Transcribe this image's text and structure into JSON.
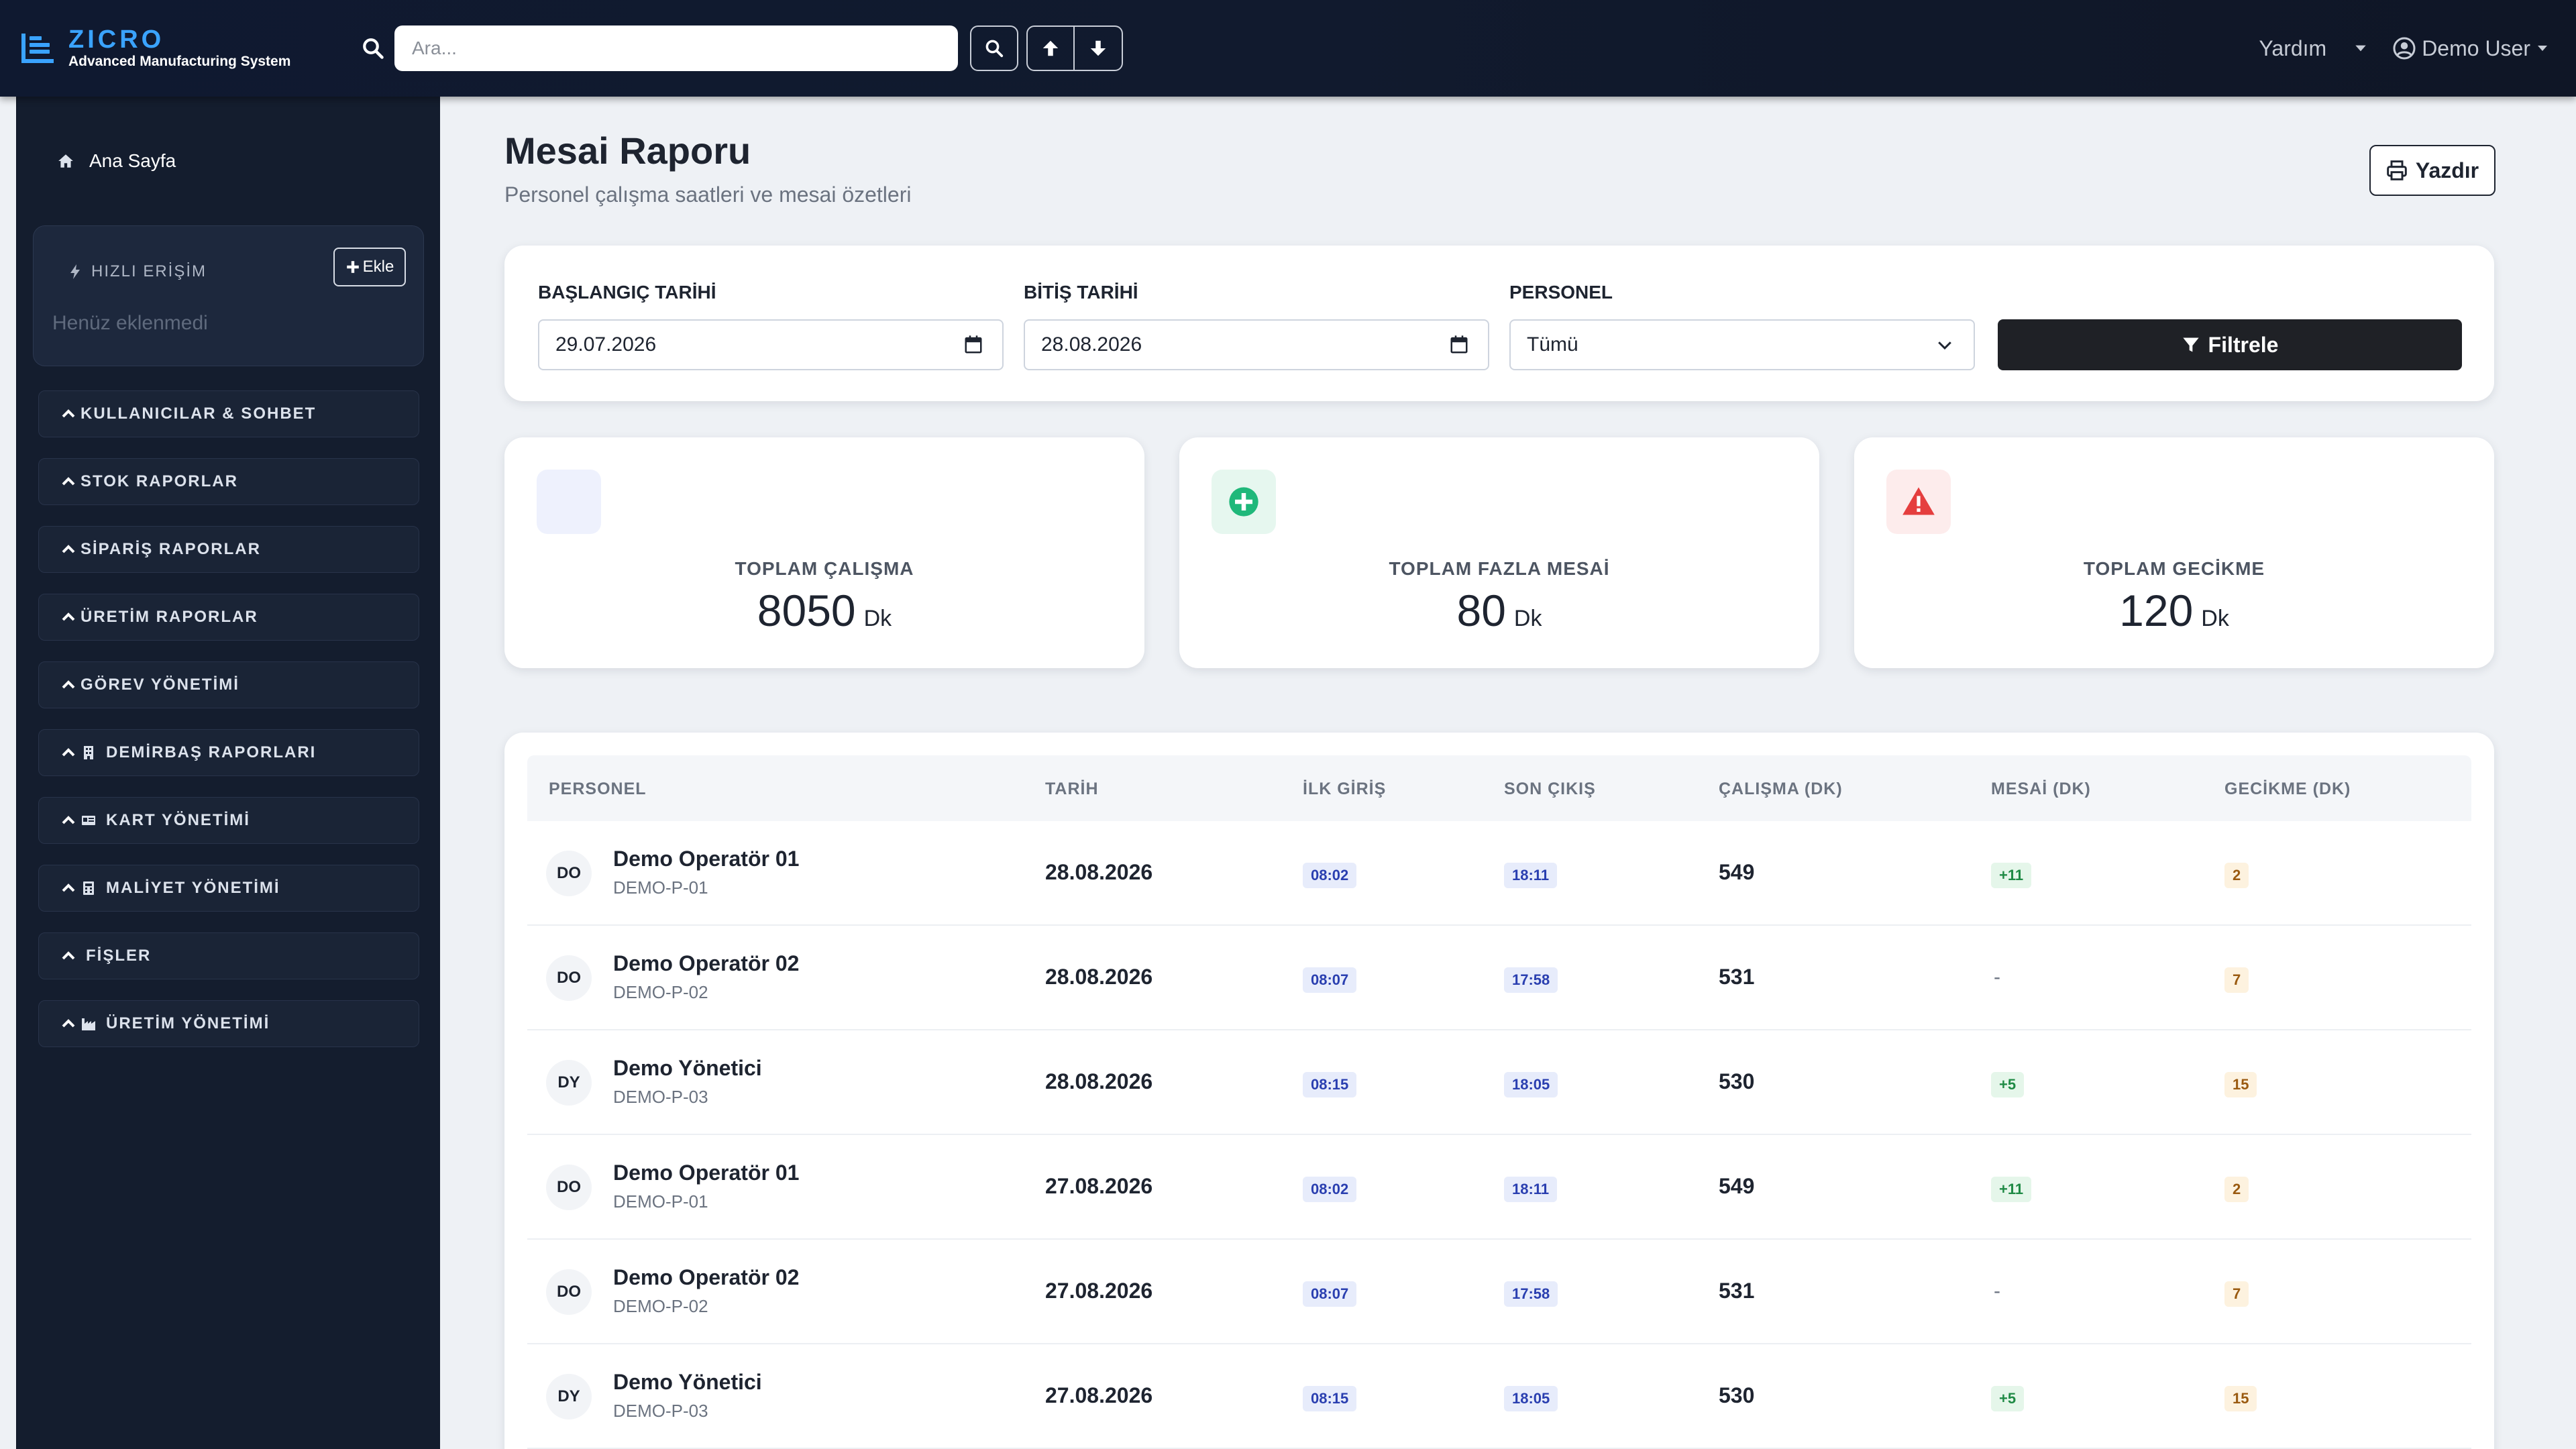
{
  "brand": {
    "name": "ZICRO",
    "subtitle": "Advanced Manufacturing System"
  },
  "search": {
    "placeholder": "Ara..."
  },
  "topbar": {
    "help_label": "Yardım",
    "user_label": "Demo User"
  },
  "sidebar": {
    "home_label": "Ana Sayfa",
    "quick_access": {
      "title": "HIZLI ERİŞİM",
      "add_label": "Ekle",
      "empty_text": "Henüz eklenmedi"
    },
    "groups": [
      {
        "label": "KULLANICILAR & SOHBET",
        "icon": "chevron-up-icon"
      },
      {
        "label": "STOK RAPORLAR",
        "icon": "chevron-up-icon"
      },
      {
        "label": "SİPARİŞ RAPORLAR",
        "icon": "chevron-up-icon"
      },
      {
        "label": "ÜRETİM RAPORLAR",
        "icon": "chevron-up-icon"
      },
      {
        "label": "GÖREV YÖNETİMİ",
        "icon": "chevron-up-icon"
      },
      {
        "label": "DEMİRBAŞ RAPORLARI",
        "icon": "building-icon"
      },
      {
        "label": "KART YÖNETİMİ",
        "icon": "id-card-icon"
      },
      {
        "label": "MALİYET YÖNETİMİ",
        "icon": "calculator-icon"
      },
      {
        "label": "FİŞLER",
        "icon": "chevron-up-icon"
      },
      {
        "label": "ÜRETİM YÖNETİMİ",
        "icon": "factory-icon"
      }
    ]
  },
  "page": {
    "title": "Mesai Raporu",
    "subtitle": "Personel çalışma saatleri ve mesai özetleri",
    "print_label": "Yazdır"
  },
  "filters": {
    "start_label": "BAŞLANGIÇ TARİHİ",
    "start_value": "29.07.2026",
    "end_label": "BİTİŞ TARİHİ",
    "end_value": "28.08.2026",
    "personnel_label": "PERSONEL",
    "personnel_value": "Tümü",
    "filter_label": "Filtrele"
  },
  "stats": [
    {
      "label": "TOPLAM ÇALIŞMA",
      "value": "8050",
      "unit": "Dk",
      "icon": "clock-icon",
      "color": "#eef1fd"
    },
    {
      "label": "TOPLAM FAZLA MESAİ",
      "value": "80",
      "unit": "Dk",
      "icon": "plus-circle-icon",
      "color": "#e6f7ef"
    },
    {
      "label": "TOPLAM GECİKME",
      "value": "120",
      "unit": "Dk",
      "icon": "warning-icon",
      "color": "#fdecec"
    }
  ],
  "table": {
    "headers": [
      "PERSONEL",
      "TARİH",
      "İLK GİRİŞ",
      "SON ÇIKIŞ",
      "ÇALIŞMA (DK)",
      "MESAİ (DK)",
      "GECİKME (DK)"
    ],
    "rows": [
      {
        "initials": "DO",
        "name": "Demo Operatör 01",
        "code": "DEMO-P-01",
        "date": "28.08.2026",
        "in": "08:02",
        "out": "18:11",
        "work": "549",
        "overtime": "+11",
        "late": "2"
      },
      {
        "initials": "DO",
        "name": "Demo Operatör 02",
        "code": "DEMO-P-02",
        "date": "28.08.2026",
        "in": "08:07",
        "out": "17:58",
        "work": "531",
        "overtime": "-",
        "late": "7"
      },
      {
        "initials": "DY",
        "name": "Demo Yönetici",
        "code": "DEMO-P-03",
        "date": "28.08.2026",
        "in": "08:15",
        "out": "18:05",
        "work": "530",
        "overtime": "+5",
        "late": "15"
      },
      {
        "initials": "DO",
        "name": "Demo Operatör 01",
        "code": "DEMO-P-01",
        "date": "27.08.2026",
        "in": "08:02",
        "out": "18:11",
        "work": "549",
        "overtime": "+11",
        "late": "2"
      },
      {
        "initials": "DO",
        "name": "Demo Operatör 02",
        "code": "DEMO-P-02",
        "date": "27.08.2026",
        "in": "08:07",
        "out": "17:58",
        "work": "531",
        "overtime": "-",
        "late": "7"
      },
      {
        "initials": "DY",
        "name": "Demo Yönetici",
        "code": "DEMO-P-03",
        "date": "27.08.2026",
        "in": "08:15",
        "out": "18:05",
        "work": "530",
        "overtime": "+5",
        "late": "15"
      }
    ]
  },
  "colors": {
    "accent": "#3aa3ff",
    "nav_bg": "#0f1930",
    "sidebar_bg": "#141d2e",
    "filter_button": "#1f2126"
  }
}
